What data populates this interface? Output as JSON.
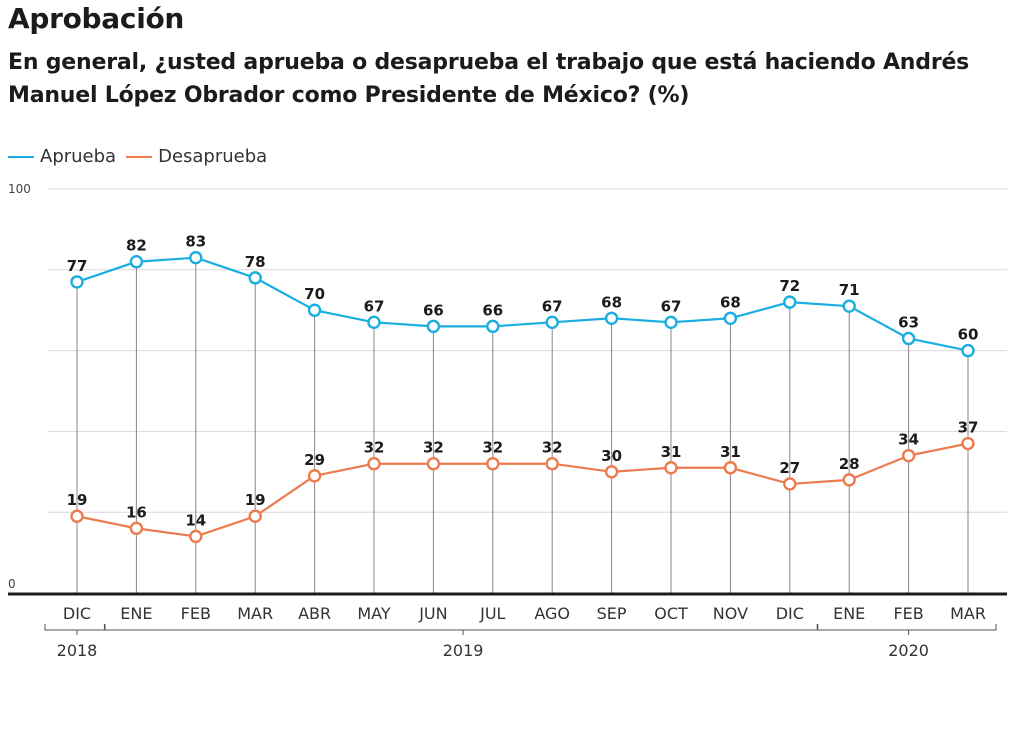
{
  "title": "Aprobación",
  "subtitle": "En general, ¿usted aprueba o desaprueba el trabajo que está haciendo Andrés Manuel López Obrador como Presidente de México?  (%)",
  "colors": {
    "aprueba": "#1aaee0",
    "desaprueba": "#ec7b4f",
    "grid": "#d9d9d9",
    "stem": "#8a8484",
    "axis": "#1b1b1b"
  },
  "chart_data": {
    "type": "line",
    "title": "Aprobación",
    "subtitle": "En general, ¿usted aprueba o desaprueba el trabajo que está haciendo Andrés Manuel López Obrador como Presidente de México?  (%)",
    "xlabel": "",
    "ylabel": "%",
    "ylim": [
      0,
      100
    ],
    "yticks_labeled": [
      "0",
      "100"
    ],
    "gridlines": [
      20,
      40,
      60,
      80,
      100
    ],
    "grid": true,
    "legend_position": "top-left",
    "categories": [
      "DIC",
      "ENE",
      "FEB",
      "MAR",
      "ABR",
      "MAY",
      "JUN",
      "JUL",
      "AGO",
      "SEP",
      "OCT",
      "NOV",
      "DIC",
      "ENE",
      "FEB",
      "MAR"
    ],
    "year_groups": [
      {
        "label": "2018",
        "start": 0,
        "end": 0
      },
      {
        "label": "2019",
        "start": 1,
        "end": 12
      },
      {
        "label": "2020",
        "start": 13,
        "end": 15
      }
    ],
    "series": [
      {
        "name": "Aprueba",
        "values": [
          77,
          82,
          83,
          78,
          70,
          67,
          66,
          66,
          67,
          68,
          67,
          68,
          72,
          71,
          63,
          60
        ]
      },
      {
        "name": "Desaprueba",
        "values": [
          19,
          16,
          14,
          19,
          29,
          32,
          32,
          32,
          32,
          30,
          31,
          31,
          27,
          28,
          34,
          37
        ]
      }
    ]
  }
}
